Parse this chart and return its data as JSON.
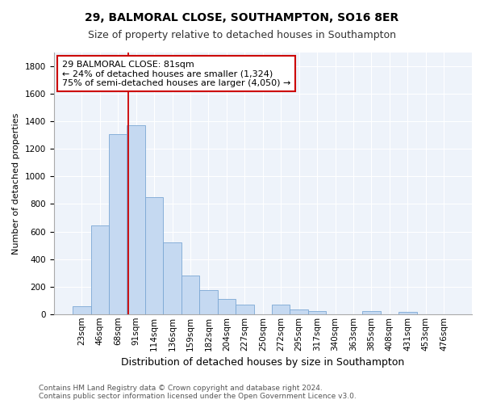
{
  "title1": "29, BALMORAL CLOSE, SOUTHAMPTON, SO16 8ER",
  "title2": "Size of property relative to detached houses in Southampton",
  "xlabel": "Distribution of detached houses by size in Southampton",
  "ylabel": "Number of detached properties",
  "categories": [
    "23sqm",
    "46sqm",
    "68sqm",
    "91sqm",
    "114sqm",
    "136sqm",
    "159sqm",
    "182sqm",
    "204sqm",
    "227sqm",
    "250sqm",
    "272sqm",
    "295sqm",
    "317sqm",
    "340sqm",
    "363sqm",
    "385sqm",
    "408sqm",
    "431sqm",
    "453sqm",
    "476sqm"
  ],
  "values": [
    55,
    645,
    1305,
    1370,
    850,
    520,
    280,
    175,
    110,
    70,
    0,
    70,
    35,
    25,
    0,
    0,
    25,
    0,
    15,
    0,
    0
  ],
  "bar_color": "#c5d9f1",
  "bar_edge_color": "#7ba7d4",
  "fig_bg": "#ffffff",
  "plot_bg": "#eef3fa",
  "grid_color": "#ffffff",
  "property_label": "29 BALMORAL CLOSE: 81sqm",
  "annotation_line1": "← 24% of detached houses are smaller (1,324)",
  "annotation_line2": "75% of semi-detached houses are larger (4,050) →",
  "vline_color": "#cc0000",
  "box_edge_color": "#cc0000",
  "ylim": [
    0,
    1900
  ],
  "yticks": [
    0,
    200,
    400,
    600,
    800,
    1000,
    1200,
    1400,
    1600,
    1800
  ],
  "footer1": "Contains HM Land Registry data © Crown copyright and database right 2024.",
  "footer2": "Contains public sector information licensed under the Open Government Licence v3.0.",
  "title1_fontsize": 10,
  "title2_fontsize": 9,
  "xlabel_fontsize": 9,
  "ylabel_fontsize": 8,
  "tick_fontsize": 7.5,
  "annotation_fontsize": 8,
  "footer_fontsize": 6.5
}
